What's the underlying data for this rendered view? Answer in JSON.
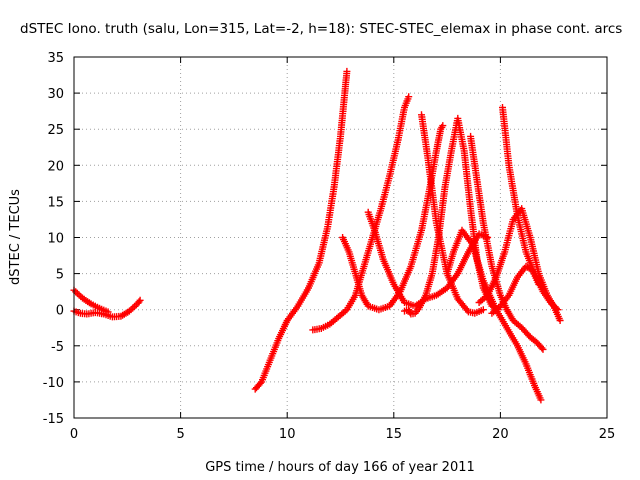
{
  "chart_data": {
    "type": "scatter",
    "title": "dSTEC Iono. truth (salu, Lon=315, Lat=-2, h=18): STEC-STEC_elemax in phase cont. arcs",
    "xlabel": "GPS time / hours of day 166 of year 2011",
    "ylabel": "dSTEC  / TECUs",
    "xlim": [
      0,
      25
    ],
    "ylim": [
      -15,
      35
    ],
    "xticks": [
      0,
      5,
      10,
      15,
      20,
      25
    ],
    "yticks": [
      -15,
      -10,
      -5,
      0,
      5,
      10,
      15,
      20,
      25,
      30,
      35
    ],
    "grid": true,
    "marker": "plus",
    "color": "#ff0000",
    "series": [
      {
        "x": [
          0.0,
          0.4,
          0.8,
          1.2,
          1.6
        ],
        "y": [
          2.7,
          1.6,
          0.8,
          0.2,
          -0.3
        ]
      },
      {
        "x": [
          0.0,
          0.3,
          0.6,
          1.0,
          1.4,
          1.8,
          2.2,
          2.6,
          3.0,
          3.1
        ],
        "y": [
          -0.2,
          -0.5,
          -0.6,
          -0.4,
          -0.6,
          -1.0,
          -0.9,
          -0.2,
          0.9,
          1.3
        ]
      },
      {
        "x": [
          8.5,
          8.8,
          9.2,
          9.6,
          10.0,
          10.5,
          11.0,
          11.5,
          11.9,
          12.2,
          12.5,
          12.7,
          12.8
        ],
        "y": [
          -11.0,
          -10.0,
          -7.0,
          -4.0,
          -1.5,
          0.5,
          3.0,
          6.5,
          11.5,
          17.0,
          24.0,
          30.0,
          33.0
        ]
      },
      {
        "x": [
          11.2,
          11.6,
          12.0,
          12.4,
          12.8,
          13.2,
          13.6,
          14.0,
          14.4,
          14.8,
          15.2,
          15.5,
          15.7
        ],
        "y": [
          -2.8,
          -2.6,
          -2.0,
          -1.0,
          0.0,
          2.0,
          6.0,
          10.0,
          14.0,
          18.5,
          23.5,
          28.0,
          29.5
        ]
      },
      {
        "x": [
          12.6,
          12.9,
          13.2,
          13.5,
          13.8,
          14.3,
          14.8,
          15.3,
          15.8,
          16.3,
          16.7,
          17.0,
          17.2,
          17.3
        ],
        "y": [
          10.0,
          8.0,
          5.0,
          2.0,
          0.5,
          0.0,
          0.5,
          2.5,
          6.0,
          11.0,
          17.0,
          22.0,
          25.0,
          25.5
        ]
      },
      {
        "x": [
          13.8,
          14.1,
          14.5,
          15.0,
          15.5,
          16.0,
          16.5,
          17.0,
          17.5,
          18.0,
          18.5,
          19.0,
          19.4
        ],
        "y": [
          13.5,
          11.0,
          7.0,
          3.5,
          1.0,
          0.5,
          1.5,
          2.0,
          3.0,
          5.0,
          8.0,
          10.5,
          10.0
        ]
      },
      {
        "x": [
          15.5,
          15.7,
          15.8,
          16.0,
          16.2,
          16.5,
          16.8,
          17.1,
          17.4,
          17.7,
          18.0,
          18.3,
          18.6,
          18.9,
          19.2,
          19.6,
          19.9
        ],
        "y": [
          -0.2,
          0.0,
          -0.6,
          -0.5,
          0.3,
          2.0,
          5.0,
          10.0,
          17.0,
          22.0,
          26.5,
          22.0,
          14.0,
          7.0,
          3.0,
          0.5,
          0.0
        ]
      },
      {
        "x": [
          16.3,
          16.6,
          17.0,
          17.5,
          18.0,
          18.5,
          18.8,
          19.2
        ],
        "y": [
          27.0,
          21.0,
          12.0,
          5.0,
          1.5,
          -0.3,
          -0.5,
          0.0
        ]
      },
      {
        "x": [
          17.5,
          17.8,
          18.2,
          18.7,
          19.2,
          19.8,
          20.3,
          20.8,
          21.2,
          21.6,
          21.9
        ],
        "y": [
          5.0,
          8.0,
          11.0,
          9.0,
          4.0,
          0.0,
          -2.5,
          -5.0,
          -7.5,
          -10.5,
          -12.5
        ]
      },
      {
        "x": [
          18.6,
          18.9,
          19.2,
          19.6,
          20.0,
          20.3,
          20.6,
          21.0,
          21.4,
          21.7,
          22.0
        ],
        "y": [
          24.0,
          18.0,
          12.0,
          6.0,
          2.0,
          0.0,
          -1.5,
          -2.5,
          -3.8,
          -4.5,
          -5.5
        ]
      },
      {
        "x": [
          19.0,
          19.4,
          19.8,
          20.2,
          20.6,
          21.0,
          21.4,
          21.8,
          22.2,
          22.5,
          22.8
        ],
        "y": [
          1.0,
          2.0,
          4.5,
          8.0,
          12.5,
          14.0,
          10.0,
          5.0,
          2.0,
          0.5,
          -1.5
        ]
      },
      {
        "x": [
          20.1,
          20.4,
          20.8,
          21.2,
          21.6,
          22.0,
          22.4,
          22.7
        ],
        "y": [
          28.0,
          20.0,
          13.0,
          8.0,
          5.0,
          2.5,
          0.8,
          0.0
        ]
      },
      {
        "x": [
          19.6,
          20.0,
          20.4,
          20.8,
          21.2,
          21.5,
          21.8
        ],
        "y": [
          -0.5,
          0.5,
          2.0,
          4.5,
          6.0,
          5.5,
          3.5
        ]
      }
    ]
  }
}
